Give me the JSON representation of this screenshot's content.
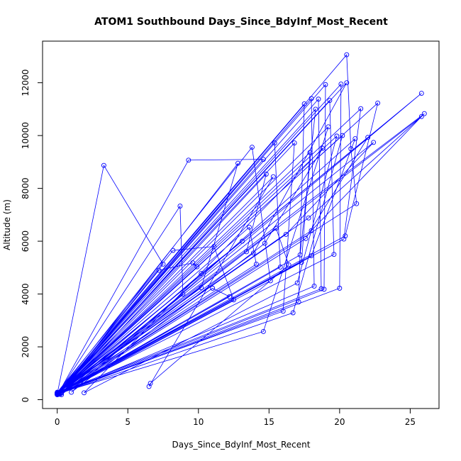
{
  "chart_data": {
    "type": "line",
    "title": "ATOM1 Southbound Days_Since_BdyInf_Most_Recent",
    "x_label": "Days_Since_BdyInf_Most_Recent",
    "y_label": "Altitude (m)",
    "color": "#0000ff",
    "markers": true,
    "x": [
      0.0,
      3.3,
      7.5,
      0.1,
      9.3,
      14.6,
      0.0,
      8.7,
      8.9,
      0.2,
      12.8,
      10.2,
      0.0,
      8.2,
      11.1,
      12.5,
      0.05,
      7.2,
      9.6,
      9.9,
      0.0,
      13.8,
      15.1,
      0.3,
      14.8,
      13.4,
      0.1,
      15.4,
      15.8,
      0.0,
      16.8,
      16.0,
      0.0,
      17.5,
      17.1,
      0.1,
      18.0,
      18.2,
      0.0,
      18.5,
      18.7,
      0.05,
      19.0,
      18.9,
      0.0,
      19.3,
      19.6,
      0.2,
      20.1,
      20.0,
      0.0,
      20.5,
      20.8,
      21.2,
      0.1,
      22.7,
      20.4,
      0.0,
      25.8,
      0.3,
      25.8,
      17.8,
      0.0,
      26.0,
      18.0,
      0.05,
      21.5,
      20.3,
      0.0,
      22.0,
      17.6,
      0.1,
      22.4,
      16.2,
      0.0,
      20.2,
      16.7,
      0.0,
      19.2,
      14.6,
      0.0,
      18.3,
      17.2,
      0.1,
      17.9,
      17.3,
      0.0,
      13.6,
      14.1,
      0.0,
      13.1,
      10.2,
      0.2,
      11.0,
      12.2,
      0.0,
      15.5,
      16.4,
      6.6,
      6.5,
      15.3,
      0.0,
      19.8,
      17.0,
      1.9,
      18.8,
      14.7,
      1.0,
      21.1,
      18.0,
      0.0,
      20.5,
      13.9,
      0.0
    ],
    "values": [
      220,
      8870,
      5130,
      260,
      9070,
      9100,
      200,
      7330,
      4000,
      240,
      8950,
      4240,
      280,
      5650,
      5800,
      3780,
      210,
      4900,
      5180,
      5030,
      230,
      9560,
      4500,
      250,
      8540,
      5600,
      200,
      9720,
      5020,
      190,
      9720,
      3350,
      250,
      11200,
      3700,
      230,
      11400,
      4300,
      210,
      11380,
      4200,
      260,
      11930,
      4180,
      220,
      11330,
      5500,
      270,
      11950,
      4220,
      200,
      13060,
      9500,
      7420,
      240,
      11230,
      6200,
      230,
      11600,
      190,
      10720,
      6880,
      260,
      10830,
      6400,
      220,
      11020,
      6080,
      250,
      9930,
      6100,
      210,
      9740,
      6260,
      240,
      10000,
      3290,
      200,
      10330,
      2580,
      230,
      11000,
      5480,
      250,
      9360,
      5200,
      220,
      6530,
      5130,
      260,
      6000,
      4780,
      210,
      4220,
      3900,
      240,
      6490,
      5100,
      620,
      500,
      8440,
      230,
      9980,
      4420,
      260,
      9520,
      5920,
      280,
      9880,
      5450,
      190,
      12000,
      5550,
      250
    ],
    "xlim": [
      -1.04,
      27.04
    ],
    "ylim": [
      -335,
      13575
    ],
    "xticks": [
      0,
      5,
      10,
      15,
      20,
      25
    ],
    "yticks": [
      0,
      2000,
      4000,
      6000,
      8000,
      10000,
      12000
    ]
  }
}
